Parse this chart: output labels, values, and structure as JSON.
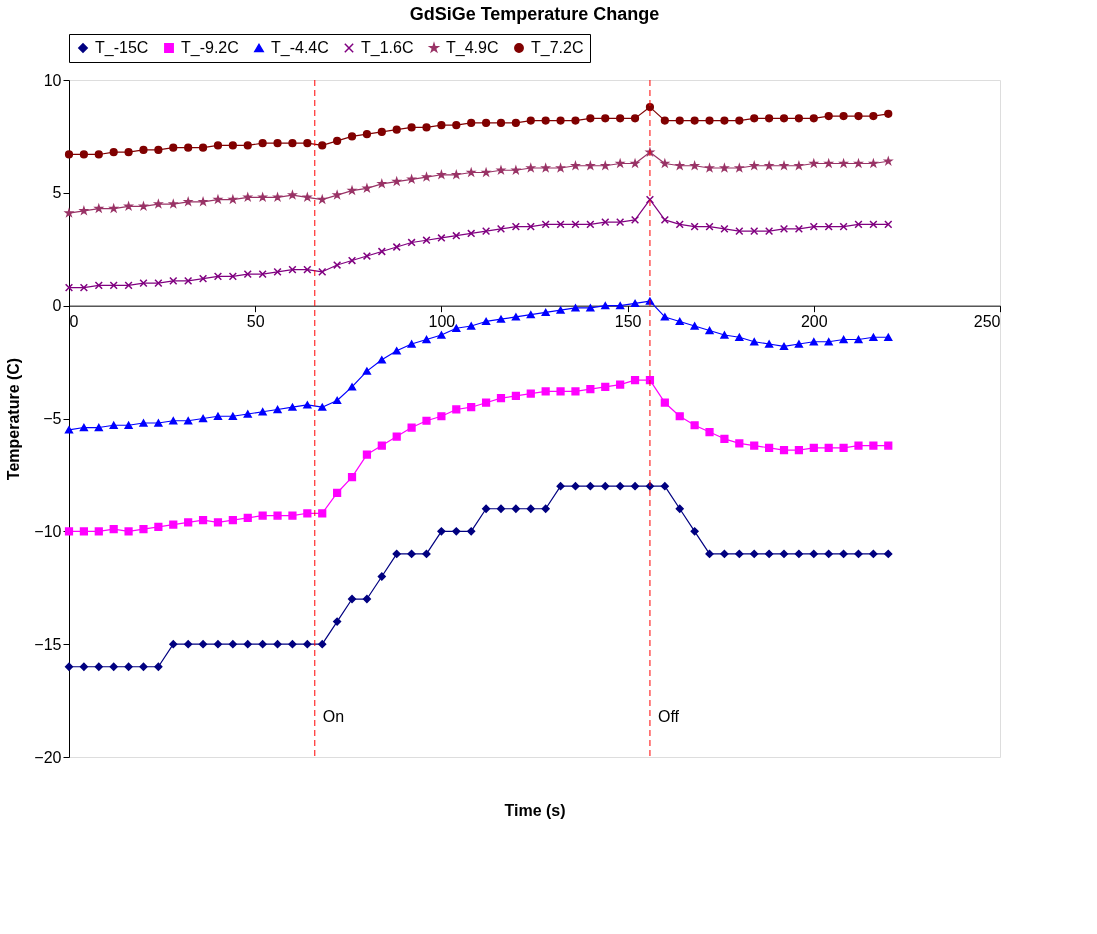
{
  "chart_data": {
    "type": "line",
    "title": "GdSiGe Temperature Change",
    "xlabel": "Time (s)",
    "ylabel": "Temperature (C)",
    "x": [
      0,
      4,
      8,
      12,
      16,
      20,
      24,
      28,
      32,
      36,
      40,
      44,
      48,
      52,
      56,
      60,
      64,
      68,
      72,
      76,
      80,
      84,
      88,
      92,
      96,
      100,
      104,
      108,
      112,
      116,
      120,
      124,
      128,
      132,
      136,
      140,
      144,
      148,
      152,
      156,
      160,
      164,
      168,
      172,
      176,
      180,
      184,
      188,
      192,
      196,
      200,
      204,
      208,
      212,
      216,
      220
    ],
    "xlim": [
      0,
      250
    ],
    "xticks": [
      0,
      50,
      100,
      150,
      200,
      250
    ],
    "ylim": [
      -20,
      10
    ],
    "yticks": [
      -20,
      -15,
      -10,
      -5,
      0,
      5,
      10
    ],
    "grid": false,
    "legend": "top",
    "line_style": "solid",
    "series": [
      {
        "name": "T_-15C",
        "color": "#000080",
        "marker": "diamond",
        "values": [
          -16,
          -16,
          -16,
          -16,
          -16,
          -16,
          -16,
          -15,
          -15,
          -15,
          -15,
          -15,
          -15,
          -15,
          -15,
          -15,
          -15,
          -15,
          -14,
          -13,
          -13,
          -12,
          -11,
          -11,
          -11,
          -10,
          -10,
          -10,
          -9,
          -9,
          -9,
          -9,
          -9,
          -8,
          -8,
          -8,
          -8,
          -8,
          -8,
          -8,
          -8,
          -9,
          -10,
          -11,
          -11,
          -11,
          -11,
          -11,
          -11,
          -11,
          -11,
          -11,
          -11,
          -11,
          -11,
          -11
        ]
      },
      {
        "name": "T_-9.2C",
        "color": "#ff00ff",
        "marker": "square",
        "values": [
          -10,
          -10,
          -10,
          -9.9,
          -10,
          -9.9,
          -9.8,
          -9.7,
          -9.6,
          -9.5,
          -9.6,
          -9.5,
          -9.4,
          -9.3,
          -9.3,
          -9.3,
          -9.2,
          -9.2,
          -8.3,
          -7.6,
          -6.6,
          -6.2,
          -5.8,
          -5.4,
          -5.1,
          -4.9,
          -4.6,
          -4.5,
          -4.3,
          -4.1,
          -4.0,
          -3.9,
          -3.8,
          -3.8,
          -3.8,
          -3.7,
          -3.6,
          -3.5,
          -3.3,
          -3.3,
          -4.3,
          -4.9,
          -5.3,
          -5.6,
          -5.9,
          -6.1,
          -6.2,
          -6.3,
          -6.4,
          -6.4,
          -6.3,
          -6.3,
          -6.3,
          -6.2,
          -6.2,
          -6.2
        ]
      },
      {
        "name": "T_-4.4C",
        "color": "#0000ff",
        "marker": "triangle",
        "values": [
          -5.5,
          -5.4,
          -5.4,
          -5.3,
          -5.3,
          -5.2,
          -5.2,
          -5.1,
          -5.1,
          -5.0,
          -4.9,
          -4.9,
          -4.8,
          -4.7,
          -4.6,
          -4.5,
          -4.4,
          -4.5,
          -4.2,
          -3.6,
          -2.9,
          -2.4,
          -2.0,
          -1.7,
          -1.5,
          -1.3,
          -1.0,
          -0.9,
          -0.7,
          -0.6,
          -0.5,
          -0.4,
          -0.3,
          -0.2,
          -0.1,
          -0.1,
          0,
          0,
          0.1,
          0.2,
          -0.5,
          -0.7,
          -0.9,
          -1.1,
          -1.3,
          -1.4,
          -1.6,
          -1.7,
          -1.8,
          -1.7,
          -1.6,
          -1.6,
          -1.5,
          -1.5,
          -1.4,
          -1.4
        ]
      },
      {
        "name": "T_1.6C",
        "color": "#800080",
        "marker": "cross",
        "values": [
          0.8,
          0.8,
          0.9,
          0.9,
          0.9,
          1.0,
          1.0,
          1.1,
          1.1,
          1.2,
          1.3,
          1.3,
          1.4,
          1.4,
          1.5,
          1.6,
          1.6,
          1.5,
          1.8,
          2.0,
          2.2,
          2.4,
          2.6,
          2.8,
          2.9,
          3.0,
          3.1,
          3.2,
          3.3,
          3.4,
          3.5,
          3.5,
          3.6,
          3.6,
          3.6,
          3.6,
          3.7,
          3.7,
          3.8,
          4.7,
          3.8,
          3.6,
          3.5,
          3.5,
          3.4,
          3.3,
          3.3,
          3.3,
          3.4,
          3.4,
          3.5,
          3.5,
          3.5,
          3.6,
          3.6,
          3.6
        ]
      },
      {
        "name": "T_4.9C",
        "color": "#993366",
        "marker": "star",
        "values": [
          4.1,
          4.2,
          4.3,
          4.3,
          4.4,
          4.4,
          4.5,
          4.5,
          4.6,
          4.6,
          4.7,
          4.7,
          4.8,
          4.8,
          4.8,
          4.9,
          4.8,
          4.7,
          4.9,
          5.1,
          5.2,
          5.4,
          5.5,
          5.6,
          5.7,
          5.8,
          5.8,
          5.9,
          5.9,
          6.0,
          6.0,
          6.1,
          6.1,
          6.1,
          6.2,
          6.2,
          6.2,
          6.3,
          6.3,
          6.8,
          6.3,
          6.2,
          6.2,
          6.1,
          6.1,
          6.1,
          6.2,
          6.2,
          6.2,
          6.2,
          6.3,
          6.3,
          6.3,
          6.3,
          6.3,
          6.4
        ]
      },
      {
        "name": "T_7.2C",
        "color": "#800000",
        "marker": "circle",
        "values": [
          6.7,
          6.7,
          6.7,
          6.8,
          6.8,
          6.9,
          6.9,
          7.0,
          7.0,
          7.0,
          7.1,
          7.1,
          7.1,
          7.2,
          7.2,
          7.2,
          7.2,
          7.1,
          7.3,
          7.5,
          7.6,
          7.7,
          7.8,
          7.9,
          7.9,
          8.0,
          8.0,
          8.1,
          8.1,
          8.1,
          8.1,
          8.2,
          8.2,
          8.2,
          8.2,
          8.3,
          8.3,
          8.3,
          8.3,
          8.8,
          8.2,
          8.2,
          8.2,
          8.2,
          8.2,
          8.2,
          8.3,
          8.3,
          8.3,
          8.3,
          8.3,
          8.4,
          8.4,
          8.4,
          8.4,
          8.5
        ]
      }
    ],
    "ref_lines": [
      {
        "axis": "x",
        "value": 66,
        "label": "On",
        "color": "#ff0000",
        "line_style": "dashed"
      },
      {
        "axis": "x",
        "value": 156,
        "label": "Off",
        "color": "#ff0000",
        "line_style": "dashed"
      }
    ]
  }
}
